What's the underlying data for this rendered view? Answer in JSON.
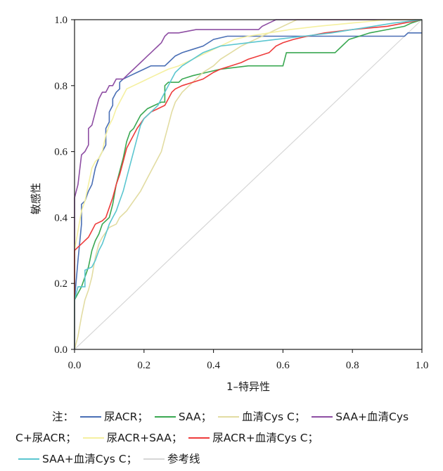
{
  "chart_data": {
    "type": "line",
    "xlabel": "1–特异性",
    "ylabel": "敏感性",
    "xlim": [
      0,
      1
    ],
    "ylim": [
      0,
      1
    ],
    "xticks": [
      "0.0",
      "0.2",
      "0.4",
      "0.6",
      "0.8",
      "1.0"
    ],
    "yticks": [
      "0.0",
      "0.2",
      "0.4",
      "0.6",
      "0.8",
      "1.0"
    ],
    "grid": false,
    "legend_placement": "bottom",
    "legend_prefix": "注：",
    "series": [
      {
        "name": "尿ACR；",
        "color": "#4a6fb5",
        "points": [
          [
            0,
            0
          ],
          [
            0,
            0.15
          ],
          [
            0.01,
            0.27
          ],
          [
            0.02,
            0.38
          ],
          [
            0.02,
            0.44
          ],
          [
            0.03,
            0.45
          ],
          [
            0.04,
            0.48
          ],
          [
            0.05,
            0.5
          ],
          [
            0.06,
            0.55
          ],
          [
            0.07,
            0.58
          ],
          [
            0.08,
            0.6
          ],
          [
            0.09,
            0.62
          ],
          [
            0.09,
            0.67
          ],
          [
            0.1,
            0.69
          ],
          [
            0.1,
            0.72
          ],
          [
            0.11,
            0.74
          ],
          [
            0.11,
            0.76
          ],
          [
            0.12,
            0.78
          ],
          [
            0.13,
            0.79
          ],
          [
            0.13,
            0.81
          ],
          [
            0.14,
            0.82
          ],
          [
            0.16,
            0.83
          ],
          [
            0.18,
            0.84
          ],
          [
            0.2,
            0.85
          ],
          [
            0.22,
            0.86
          ],
          [
            0.26,
            0.86
          ],
          [
            0.27,
            0.87
          ],
          [
            0.29,
            0.89
          ],
          [
            0.31,
            0.9
          ],
          [
            0.34,
            0.91
          ],
          [
            0.37,
            0.92
          ],
          [
            0.4,
            0.94
          ],
          [
            0.44,
            0.95
          ],
          [
            0.5,
            0.95
          ],
          [
            0.6,
            0.95
          ],
          [
            0.7,
            0.95
          ],
          [
            0.8,
            0.95
          ],
          [
            0.9,
            0.95
          ],
          [
            0.95,
            0.95
          ],
          [
            0.96,
            0.96
          ],
          [
            1,
            0.96
          ]
        ]
      },
      {
        "name": "SAA；",
        "color": "#3aa852",
        "points": [
          [
            0,
            0
          ],
          [
            0,
            0.15
          ],
          [
            0.01,
            0.17
          ],
          [
            0.02,
            0.19
          ],
          [
            0.04,
            0.25
          ],
          [
            0.05,
            0.3
          ],
          [
            0.06,
            0.33
          ],
          [
            0.07,
            0.35
          ],
          [
            0.08,
            0.38
          ],
          [
            0.1,
            0.4
          ],
          [
            0.11,
            0.44
          ],
          [
            0.12,
            0.5
          ],
          [
            0.13,
            0.54
          ],
          [
            0.14,
            0.58
          ],
          [
            0.15,
            0.63
          ],
          [
            0.16,
            0.66
          ],
          [
            0.17,
            0.67
          ],
          [
            0.18,
            0.69
          ],
          [
            0.19,
            0.71
          ],
          [
            0.21,
            0.73
          ],
          [
            0.23,
            0.74
          ],
          [
            0.25,
            0.75
          ],
          [
            0.26,
            0.75
          ],
          [
            0.26,
            0.8
          ],
          [
            0.27,
            0.81
          ],
          [
            0.3,
            0.81
          ],
          [
            0.31,
            0.82
          ],
          [
            0.34,
            0.83
          ],
          [
            0.38,
            0.84
          ],
          [
            0.42,
            0.85
          ],
          [
            0.5,
            0.86
          ],
          [
            0.6,
            0.86
          ],
          [
            0.61,
            0.9
          ],
          [
            0.7,
            0.9
          ],
          [
            0.75,
            0.9
          ],
          [
            0.77,
            0.92
          ],
          [
            0.79,
            0.94
          ],
          [
            0.82,
            0.95
          ],
          [
            0.85,
            0.96
          ],
          [
            0.9,
            0.97
          ],
          [
            0.95,
            0.98
          ],
          [
            0.97,
            0.99
          ],
          [
            1,
            1
          ]
        ]
      },
      {
        "name": "血清Cys C；",
        "color": "#e2dca2",
        "points": [
          [
            0,
            0
          ],
          [
            0.01,
            0.04
          ],
          [
            0.02,
            0.1
          ],
          [
            0.03,
            0.15
          ],
          [
            0.04,
            0.18
          ],
          [
            0.05,
            0.22
          ],
          [
            0.06,
            0.28
          ],
          [
            0.07,
            0.32
          ],
          [
            0.08,
            0.34
          ],
          [
            0.1,
            0.37
          ],
          [
            0.12,
            0.38
          ],
          [
            0.13,
            0.4
          ],
          [
            0.15,
            0.42
          ],
          [
            0.17,
            0.45
          ],
          [
            0.19,
            0.48
          ],
          [
            0.21,
            0.52
          ],
          [
            0.23,
            0.56
          ],
          [
            0.25,
            0.6
          ],
          [
            0.26,
            0.64
          ],
          [
            0.27,
            0.68
          ],
          [
            0.28,
            0.72
          ],
          [
            0.29,
            0.75
          ],
          [
            0.31,
            0.78
          ],
          [
            0.33,
            0.8
          ],
          [
            0.35,
            0.82
          ],
          [
            0.37,
            0.84
          ],
          [
            0.4,
            0.86
          ],
          [
            0.42,
            0.88
          ],
          [
            0.45,
            0.9
          ],
          [
            0.48,
            0.92
          ],
          [
            0.52,
            0.94
          ],
          [
            0.56,
            0.96
          ],
          [
            0.6,
            0.98
          ],
          [
            0.64,
            1
          ],
          [
            1,
            1
          ]
        ]
      },
      {
        "name": "SAA+血清Cys C+尿ACR；",
        "color": "#8e4ea3",
        "points": [
          [
            0,
            0
          ],
          [
            0,
            0.46
          ],
          [
            0.01,
            0.5
          ],
          [
            0.02,
            0.59
          ],
          [
            0.03,
            0.6
          ],
          [
            0.04,
            0.62
          ],
          [
            0.04,
            0.67
          ],
          [
            0.05,
            0.68
          ],
          [
            0.06,
            0.72
          ],
          [
            0.07,
            0.76
          ],
          [
            0.08,
            0.78
          ],
          [
            0.09,
            0.78
          ],
          [
            0.1,
            0.8
          ],
          [
            0.11,
            0.8
          ],
          [
            0.12,
            0.82
          ],
          [
            0.14,
            0.82
          ],
          [
            0.15,
            0.83
          ],
          [
            0.16,
            0.84
          ],
          [
            0.17,
            0.85
          ],
          [
            0.18,
            0.86
          ],
          [
            0.19,
            0.87
          ],
          [
            0.2,
            0.88
          ],
          [
            0.21,
            0.89
          ],
          [
            0.22,
            0.9
          ],
          [
            0.23,
            0.91
          ],
          [
            0.24,
            0.92
          ],
          [
            0.25,
            0.93
          ],
          [
            0.26,
            0.95
          ],
          [
            0.27,
            0.96
          ],
          [
            0.3,
            0.96
          ],
          [
            0.35,
            0.97
          ],
          [
            0.4,
            0.97
          ],
          [
            0.45,
            0.97
          ],
          [
            0.53,
            0.97
          ],
          [
            0.54,
            0.98
          ],
          [
            0.56,
            0.99
          ],
          [
            0.58,
            1
          ],
          [
            1,
            1
          ]
        ]
      },
      {
        "name": "尿ACR+SAA；",
        "color": "#f5f0a0",
        "points": [
          [
            0,
            0
          ],
          [
            0,
            0.3
          ],
          [
            0.01,
            0.36
          ],
          [
            0.02,
            0.42
          ],
          [
            0.03,
            0.45
          ],
          [
            0.04,
            0.5
          ],
          [
            0.05,
            0.55
          ],
          [
            0.06,
            0.57
          ],
          [
            0.07,
            0.58
          ],
          [
            0.08,
            0.6
          ],
          [
            0.09,
            0.65
          ],
          [
            0.1,
            0.68
          ],
          [
            0.11,
            0.7
          ],
          [
            0.12,
            0.73
          ],
          [
            0.13,
            0.75
          ],
          [
            0.14,
            0.77
          ],
          [
            0.15,
            0.79
          ],
          [
            0.17,
            0.8
          ],
          [
            0.19,
            0.81
          ],
          [
            0.21,
            0.82
          ],
          [
            0.23,
            0.83
          ],
          [
            0.25,
            0.84
          ],
          [
            0.27,
            0.85
          ],
          [
            0.3,
            0.86
          ],
          [
            0.34,
            0.88
          ],
          [
            0.38,
            0.9
          ],
          [
            0.42,
            0.92
          ],
          [
            0.46,
            0.94
          ],
          [
            0.5,
            0.95
          ],
          [
            0.56,
            0.96
          ],
          [
            0.62,
            0.97
          ],
          [
            0.7,
            0.98
          ],
          [
            0.8,
            0.99
          ],
          [
            0.9,
            1
          ],
          [
            1,
            1
          ]
        ]
      },
      {
        "name": "尿ACR+血清Cys C；",
        "color": "#ee3b3b",
        "points": [
          [
            0,
            0
          ],
          [
            0,
            0.3
          ],
          [
            0.01,
            0.31
          ],
          [
            0.02,
            0.32
          ],
          [
            0.03,
            0.33
          ],
          [
            0.04,
            0.34
          ],
          [
            0.05,
            0.36
          ],
          [
            0.06,
            0.38
          ],
          [
            0.08,
            0.39
          ],
          [
            0.09,
            0.4
          ],
          [
            0.1,
            0.43
          ],
          [
            0.11,
            0.46
          ],
          [
            0.12,
            0.5
          ],
          [
            0.13,
            0.53
          ],
          [
            0.14,
            0.57
          ],
          [
            0.15,
            0.61
          ],
          [
            0.16,
            0.63
          ],
          [
            0.17,
            0.65
          ],
          [
            0.18,
            0.67
          ],
          [
            0.2,
            0.7
          ],
          [
            0.22,
            0.72
          ],
          [
            0.24,
            0.73
          ],
          [
            0.26,
            0.74
          ],
          [
            0.27,
            0.76
          ],
          [
            0.28,
            0.78
          ],
          [
            0.29,
            0.79
          ],
          [
            0.31,
            0.8
          ],
          [
            0.34,
            0.81
          ],
          [
            0.37,
            0.82
          ],
          [
            0.4,
            0.84
          ],
          [
            0.42,
            0.85
          ],
          [
            0.45,
            0.86
          ],
          [
            0.48,
            0.87
          ],
          [
            0.5,
            0.88
          ],
          [
            0.53,
            0.89
          ],
          [
            0.56,
            0.9
          ],
          [
            0.58,
            0.92
          ],
          [
            0.6,
            0.93
          ],
          [
            0.63,
            0.94
          ],
          [
            0.67,
            0.95
          ],
          [
            0.72,
            0.96
          ],
          [
            0.8,
            0.97
          ],
          [
            0.9,
            0.98
          ],
          [
            0.95,
            0.99
          ],
          [
            1,
            1
          ]
        ]
      },
      {
        "name": "SAA+血清Cys C；",
        "color": "#5bc6d0",
        "points": [
          [
            0,
            0
          ],
          [
            0,
            0.15
          ],
          [
            0.01,
            0.19
          ],
          [
            0.03,
            0.19
          ],
          [
            0.03,
            0.24
          ],
          [
            0.05,
            0.25
          ],
          [
            0.06,
            0.27
          ],
          [
            0.07,
            0.3
          ],
          [
            0.08,
            0.32
          ],
          [
            0.09,
            0.35
          ],
          [
            0.1,
            0.38
          ],
          [
            0.11,
            0.4
          ],
          [
            0.12,
            0.42
          ],
          [
            0.13,
            0.45
          ],
          [
            0.14,
            0.48
          ],
          [
            0.15,
            0.52
          ],
          [
            0.16,
            0.56
          ],
          [
            0.17,
            0.6
          ],
          [
            0.18,
            0.64
          ],
          [
            0.19,
            0.68
          ],
          [
            0.2,
            0.7
          ],
          [
            0.22,
            0.72
          ],
          [
            0.24,
            0.74
          ],
          [
            0.25,
            0.76
          ],
          [
            0.26,
            0.78
          ],
          [
            0.27,
            0.8
          ],
          [
            0.28,
            0.82
          ],
          [
            0.29,
            0.84
          ],
          [
            0.31,
            0.86
          ],
          [
            0.34,
            0.88
          ],
          [
            0.37,
            0.9
          ],
          [
            0.42,
            0.92
          ],
          [
            0.5,
            0.93
          ],
          [
            0.58,
            0.94
          ],
          [
            0.66,
            0.95
          ],
          [
            0.74,
            0.96
          ],
          [
            0.8,
            0.97
          ],
          [
            0.86,
            0.98
          ],
          [
            0.92,
            0.99
          ],
          [
            1,
            1
          ]
        ]
      },
      {
        "name": "参考线",
        "color": "#d6d6d6",
        "points": [
          [
            0,
            0
          ],
          [
            1,
            1
          ]
        ]
      }
    ]
  }
}
